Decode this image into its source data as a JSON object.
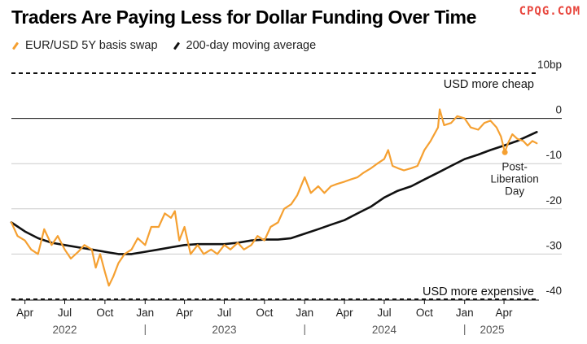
{
  "header": {
    "title": "Traders Are Paying Less for Dollar Funding Over Time",
    "watermark": "CPQG.COM"
  },
  "colors": {
    "swap": "#f5a031",
    "ma": "#111111",
    "grid": "#cccccc",
    "text": "#222222"
  },
  "chart_data": {
    "type": "line",
    "ylim": [
      -40,
      10
    ],
    "xlim": [
      "2022-03-01",
      "2025-06-20"
    ],
    "y_ticks": [
      {
        "value": 10,
        "label": "10bp"
      },
      {
        "value": 0,
        "label": "0"
      },
      {
        "value": -10,
        "label": "-10"
      },
      {
        "value": -20,
        "label": "-20"
      },
      {
        "value": -30,
        "label": "-30"
      },
      {
        "value": -40,
        "label": "-40"
      }
    ],
    "x_ticks": [
      {
        "date": "2022-04-01",
        "label": "Apr"
      },
      {
        "date": "2022-07-01",
        "label": "Jul"
      },
      {
        "date": "2022-10-01",
        "label": "Oct"
      },
      {
        "date": "2023-01-01",
        "label": "Jan"
      },
      {
        "date": "2023-04-01",
        "label": "Apr"
      },
      {
        "date": "2023-07-01",
        "label": "Jul"
      },
      {
        "date": "2023-10-01",
        "label": "Oct"
      },
      {
        "date": "2024-01-01",
        "label": "Jan"
      },
      {
        "date": "2024-04-01",
        "label": "Apr"
      },
      {
        "date": "2024-07-01",
        "label": "Jul"
      },
      {
        "date": "2024-10-01",
        "label": "Oct"
      },
      {
        "date": "2025-01-01",
        "label": "Jan"
      },
      {
        "date": "2025-04-01",
        "label": "Apr"
      }
    ],
    "year_labels": [
      {
        "date": "2022-07-01",
        "label": "2022"
      },
      {
        "date": "2023-07-01",
        "label": "2023"
      },
      {
        "date": "2024-07-01",
        "label": "2024"
      },
      {
        "date": "2025-03-05",
        "label": "2025"
      }
    ],
    "year_dividers": [
      "2023-01-01",
      "2024-01-01",
      "2025-01-01"
    ],
    "zero_line": 0,
    "reference_lines": [
      {
        "value": 10,
        "style": "dashed",
        "label": "USD more cheap"
      },
      {
        "value": -40,
        "style": "dashed",
        "label": "USD more expensive"
      }
    ],
    "series": [
      {
        "name": "EUR/USD 5Y basis swap",
        "color": "#f5a031",
        "points": [
          [
            "2022-03-01",
            -23
          ],
          [
            "2022-03-15",
            -26
          ],
          [
            "2022-04-01",
            -27
          ],
          [
            "2022-04-15",
            -29
          ],
          [
            "2022-05-01",
            -30
          ],
          [
            "2022-05-15",
            -24.5
          ],
          [
            "2022-06-01",
            -28
          ],
          [
            "2022-06-15",
            -26
          ],
          [
            "2022-07-01",
            -29
          ],
          [
            "2022-07-15",
            -31
          ],
          [
            "2022-08-01",
            -29.5
          ],
          [
            "2022-08-15",
            -28
          ],
          [
            "2022-09-01",
            -29
          ],
          [
            "2022-09-10",
            -33
          ],
          [
            "2022-09-20",
            -30
          ],
          [
            "2022-10-01",
            -34
          ],
          [
            "2022-10-10",
            -37
          ],
          [
            "2022-10-20",
            -35
          ],
          [
            "2022-11-01",
            -32
          ],
          [
            "2022-11-15",
            -30
          ],
          [
            "2022-12-01",
            -29
          ],
          [
            "2022-12-15",
            -26.5
          ],
          [
            "2023-01-01",
            -28
          ],
          [
            "2023-01-15",
            -24
          ],
          [
            "2023-02-01",
            -24
          ],
          [
            "2023-02-15",
            -21
          ],
          [
            "2023-03-01",
            -22
          ],
          [
            "2023-03-10",
            -20.5
          ],
          [
            "2023-03-20",
            -27
          ],
          [
            "2023-04-01",
            -24
          ],
          [
            "2023-04-15",
            -30
          ],
          [
            "2023-05-01",
            -28
          ],
          [
            "2023-05-15",
            -30
          ],
          [
            "2023-06-01",
            -29
          ],
          [
            "2023-06-15",
            -30
          ],
          [
            "2023-07-01",
            -28
          ],
          [
            "2023-07-15",
            -29
          ],
          [
            "2023-08-01",
            -27.5
          ],
          [
            "2023-08-15",
            -29
          ],
          [
            "2023-09-01",
            -28
          ],
          [
            "2023-09-15",
            -26
          ],
          [
            "2023-10-01",
            -27
          ],
          [
            "2023-10-15",
            -24
          ],
          [
            "2023-11-01",
            -23
          ],
          [
            "2023-11-15",
            -20
          ],
          [
            "2023-12-01",
            -19
          ],
          [
            "2023-12-15",
            -17
          ],
          [
            "2024-01-01",
            -13
          ],
          [
            "2024-01-15",
            -16.5
          ],
          [
            "2024-02-01",
            -15
          ],
          [
            "2024-02-15",
            -16.5
          ],
          [
            "2024-03-01",
            -15
          ],
          [
            "2024-03-15",
            -14.5
          ],
          [
            "2024-04-01",
            -14
          ],
          [
            "2024-04-15",
            -13.5
          ],
          [
            "2024-05-01",
            -13
          ],
          [
            "2024-05-15",
            -12
          ],
          [
            "2024-06-01",
            -11
          ],
          [
            "2024-06-15",
            -10
          ],
          [
            "2024-07-01",
            -9
          ],
          [
            "2024-07-10",
            -7
          ],
          [
            "2024-07-20",
            -10.5
          ],
          [
            "2024-08-01",
            -11
          ],
          [
            "2024-08-15",
            -11.5
          ],
          [
            "2024-09-01",
            -11
          ],
          [
            "2024-09-15",
            -10.5
          ],
          [
            "2024-10-01",
            -7
          ],
          [
            "2024-10-15",
            -5
          ],
          [
            "2024-11-01",
            -2
          ],
          [
            "2024-11-05",
            2
          ],
          [
            "2024-11-15",
            -1.5
          ],
          [
            "2024-12-01",
            -1
          ],
          [
            "2024-12-15",
            0.5
          ],
          [
            "2025-01-01",
            0
          ],
          [
            "2025-01-15",
            -2
          ],
          [
            "2025-02-01",
            -2.5
          ],
          [
            "2025-02-15",
            -1
          ],
          [
            "2025-03-01",
            -0.5
          ],
          [
            "2025-03-15",
            -2
          ],
          [
            "2025-03-25",
            -4
          ],
          [
            "2025-04-03",
            -7.5
          ],
          [
            "2025-04-10",
            -5.5
          ],
          [
            "2025-04-20",
            -3.5
          ],
          [
            "2025-05-01",
            -4.5
          ],
          [
            "2025-05-15",
            -5
          ],
          [
            "2025-05-25",
            -6
          ],
          [
            "2025-06-05",
            -5
          ],
          [
            "2025-06-15",
            -5.5
          ]
        ]
      },
      {
        "name": "200-day moving average",
        "color": "#111111",
        "points": [
          [
            "2022-03-01",
            -23
          ],
          [
            "2022-04-01",
            -25
          ],
          [
            "2022-05-01",
            -26.5
          ],
          [
            "2022-06-01",
            -27.5
          ],
          [
            "2022-07-01",
            -28
          ],
          [
            "2022-08-01",
            -28.5
          ],
          [
            "2022-09-01",
            -29
          ],
          [
            "2022-10-01",
            -29.5
          ],
          [
            "2022-11-01",
            -30
          ],
          [
            "2022-12-01",
            -30
          ],
          [
            "2023-01-01",
            -29.5
          ],
          [
            "2023-02-01",
            -29
          ],
          [
            "2023-03-01",
            -28.5
          ],
          [
            "2023-04-01",
            -28
          ],
          [
            "2023-05-01",
            -27.8
          ],
          [
            "2023-06-01",
            -27.8
          ],
          [
            "2023-07-01",
            -27.8
          ],
          [
            "2023-08-01",
            -27.5
          ],
          [
            "2023-09-01",
            -27
          ],
          [
            "2023-10-01",
            -26.8
          ],
          [
            "2023-11-01",
            -26.8
          ],
          [
            "2023-12-01",
            -26.5
          ],
          [
            "2024-01-01",
            -25.5
          ],
          [
            "2024-02-01",
            -24.5
          ],
          [
            "2024-03-01",
            -23.5
          ],
          [
            "2024-04-01",
            -22.5
          ],
          [
            "2024-05-01",
            -21
          ],
          [
            "2024-06-01",
            -19.5
          ],
          [
            "2024-07-01",
            -17.5
          ],
          [
            "2024-08-01",
            -16
          ],
          [
            "2024-09-01",
            -15
          ],
          [
            "2024-10-01",
            -13.5
          ],
          [
            "2024-11-01",
            -12
          ],
          [
            "2024-12-01",
            -10.5
          ],
          [
            "2025-01-01",
            -9
          ],
          [
            "2025-02-01",
            -8
          ],
          [
            "2025-03-01",
            -7
          ],
          [
            "2025-04-01",
            -6
          ],
          [
            "2025-05-01",
            -5
          ],
          [
            "2025-06-15",
            -3
          ]
        ]
      }
    ],
    "annotations": [
      {
        "date": "2025-04-03",
        "value": -7.5,
        "lines": [
          "Post-",
          "Liberation",
          "Day"
        ]
      }
    ]
  }
}
